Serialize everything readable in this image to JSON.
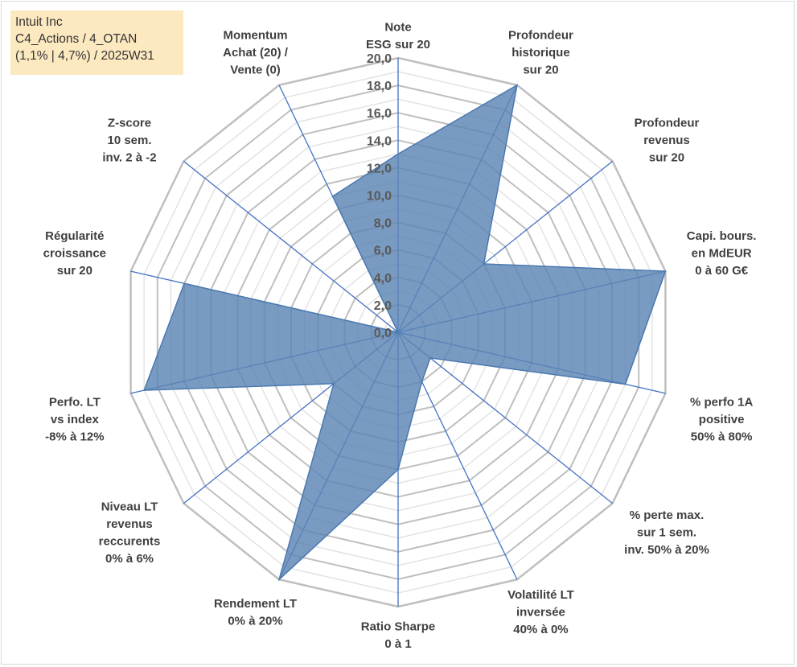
{
  "title_box": {
    "line1": "Intuit Inc",
    "line2": "C4_Actions / 4_OTAN",
    "line3": "(1,1% | 4,7%) / 2025W31"
  },
  "colors": {
    "fill": "#5b85b5",
    "stroke": "#4a78b0",
    "axis": "#4472c4",
    "grid_major": "#bfbfbf",
    "grid_minor": "#e3e3e3",
    "title_bg": "#fde9c0"
  },
  "chart_data": {
    "type": "radar",
    "range": [
      0,
      20
    ],
    "tick_step": 2,
    "ticks": [
      "0,0",
      "2,0",
      "4,0",
      "6,0",
      "8,0",
      "10,0",
      "12,0",
      "14,0",
      "16,0",
      "18,0",
      "20,0"
    ],
    "grid": true,
    "axes": [
      {
        "label": [
          "Note",
          "ESG sur 20"
        ],
        "value": 13.0
      },
      {
        "label": [
          "Profondeur",
          "historique",
          "sur 20"
        ],
        "value": 20.0
      },
      {
        "label": [
          "Profondeur",
          "revenus",
          "sur 20"
        ],
        "value": 8.0
      },
      {
        "label": [
          "Capi. bours.",
          "en MdEUR",
          "0 à 60 G€"
        ],
        "value": 20.0
      },
      {
        "label": [
          "% perfo 1A",
          "positive",
          "50% à 80%"
        ],
        "value": 17.0
      },
      {
        "label": [
          "% perte max.",
          "sur 1 sem.",
          "inv. 50% à 20%"
        ],
        "value": 3.0
      },
      {
        "label": [
          "Volatilité LT",
          "inversée",
          "40% à 0%"
        ],
        "value": 4.0
      },
      {
        "label": [
          "Ratio Sharpe",
          "0 à 1"
        ],
        "value": 10.0
      },
      {
        "label": [
          "Rendement LT",
          "0% à 20%"
        ],
        "value": 20.0
      },
      {
        "label": [
          "Niveau LT",
          "revenus",
          "reccurents",
          "0% à 6%"
        ],
        "value": 6.0
      },
      {
        "label": [
          "Perfo. LT",
          "vs index",
          "-8% à 12%"
        ],
        "value": 19.0
      },
      {
        "label": [
          "Régularité",
          "croissance",
          "sur 20"
        ],
        "value": 16.0
      },
      {
        "label": [
          "Z-score",
          "10 sem.",
          "inv. 2 à -2"
        ],
        "value": 0.0
      },
      {
        "label": [
          "Momentum",
          "Achat (20) /",
          "Vente (0)"
        ],
        "value": 11.0
      }
    ]
  }
}
